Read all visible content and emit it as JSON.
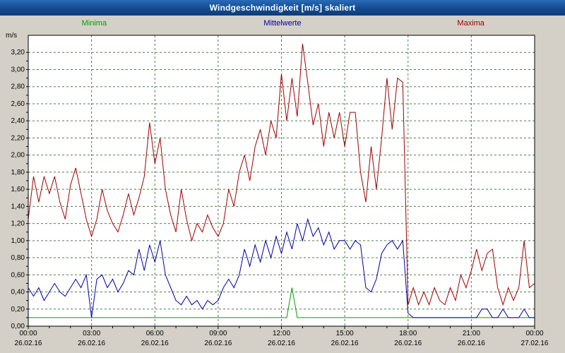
{
  "title": "Windgeschwindigkeit [m/s] skaliert",
  "chart_data": {
    "type": "line",
    "title": "Windgeschwindigkeit [m/s] skaliert",
    "ylabel": "m/s",
    "ylim": [
      0,
      3.4
    ],
    "ymax_tick": 3.2,
    "ytick_step": 0.2,
    "hours": 24,
    "grid_on": true,
    "grid_color": "#4e7d4e",
    "x_ticks": [
      {
        "hour": 0,
        "time": "00:00",
        "date": "26.02.16"
      },
      {
        "hour": 3,
        "time": "03:00",
        "date": "26.02.16"
      },
      {
        "hour": 6,
        "time": "06:00",
        "date": "26.02.16"
      },
      {
        "hour": 9,
        "time": "09:00",
        "date": "26.02.16"
      },
      {
        "hour": 12,
        "time": "12:00",
        "date": "26.02.16"
      },
      {
        "hour": 15,
        "time": "15:00",
        "date": "26.02.16"
      },
      {
        "hour": 18,
        "time": "18:00",
        "date": "26.02.16"
      },
      {
        "hour": 21,
        "time": "21:00",
        "date": "26.02.16"
      },
      {
        "hour": 24,
        "time": "00:00",
        "date": "27.02.16"
      }
    ],
    "series": [
      {
        "name": "Minima",
        "color": "#00a000",
        "values": [
          0.1,
          0.1,
          0.1,
          0.1,
          0.1,
          0.1,
          0.1,
          0.1,
          0.1,
          0.1,
          0.1,
          0.1,
          0.1,
          0.1,
          0.1,
          0.1,
          0.1,
          0.1,
          0.1,
          0.1,
          0.1,
          0.1,
          0.1,
          0.1,
          0.1,
          0.1,
          0.1,
          0.1,
          0.1,
          0.1,
          0.1,
          0.1,
          0.1,
          0.1,
          0.1,
          0.1,
          0.1,
          0.1,
          0.1,
          0.1,
          0.1,
          0.1,
          0.1,
          0.1,
          0.1,
          0.1,
          0.1,
          0.1,
          0.1,
          0.1,
          0.45,
          0.1,
          0.1,
          0.1,
          0.1,
          0.1,
          0.1,
          0.1,
          0.1,
          0.1,
          0.1,
          0.1,
          0.1,
          0.1,
          0.1,
          0.1,
          0.1,
          0.1,
          0.1,
          0.1,
          0.1,
          0.1,
          0.1,
          0.1,
          0.1,
          0.1,
          0.1,
          0.1,
          0.1,
          0.1,
          0.1,
          0.1,
          0.1,
          0.1,
          0.1,
          0.1,
          0.1,
          0.1,
          0.1,
          0.1,
          0.1,
          0.1,
          0.1,
          0.1,
          0.1,
          0.1,
          0.1
        ]
      },
      {
        "name": "Mittelwerte",
        "color": "#0000a0",
        "values": [
          0.45,
          0.35,
          0.45,
          0.3,
          0.4,
          0.5,
          0.4,
          0.35,
          0.45,
          0.55,
          0.45,
          0.6,
          0.1,
          0.55,
          0.6,
          0.45,
          0.55,
          0.4,
          0.5,
          0.65,
          0.6,
          0.9,
          0.65,
          0.95,
          0.75,
          1.0,
          0.6,
          0.45,
          0.3,
          0.25,
          0.35,
          0.25,
          0.3,
          0.2,
          0.3,
          0.25,
          0.3,
          0.45,
          0.55,
          0.45,
          0.6,
          0.9,
          0.7,
          0.95,
          0.75,
          1.0,
          0.8,
          1.05,
          0.85,
          1.1,
          0.9,
          1.2,
          1.0,
          1.25,
          1.05,
          1.15,
          0.95,
          1.1,
          0.9,
          1.0,
          1.0,
          0.9,
          1.0,
          0.95,
          0.45,
          0.4,
          0.55,
          0.85,
          0.95,
          1.0,
          0.9,
          1.0,
          0.15,
          0.1,
          0.1,
          0.1,
          0.1,
          0.1,
          0.1,
          0.1,
          0.1,
          0.1,
          0.1,
          0.1,
          0.1,
          0.1,
          0.2,
          0.2,
          0.1,
          0.1,
          0.2,
          0.1,
          0.1,
          0.1,
          0.2,
          0.1,
          0.1
        ]
      },
      {
        "name": "Maxima",
        "color": "#a00000",
        "values": [
          1.25,
          1.75,
          1.45,
          1.75,
          1.55,
          1.75,
          1.45,
          1.25,
          1.65,
          1.85,
          1.55,
          1.25,
          1.05,
          1.25,
          1.6,
          1.35,
          1.2,
          1.1,
          1.3,
          1.55,
          1.3,
          1.5,
          1.75,
          2.38,
          1.9,
          2.2,
          1.6,
          1.3,
          1.1,
          1.6,
          1.25,
          1.0,
          1.2,
          1.1,
          1.3,
          1.15,
          1.05,
          1.2,
          1.6,
          1.4,
          1.8,
          2.0,
          1.7,
          2.1,
          2.3,
          2.0,
          2.4,
          2.2,
          2.95,
          2.4,
          2.9,
          2.45,
          3.3,
          2.85,
          2.35,
          2.6,
          2.1,
          2.5,
          2.2,
          2.5,
          2.1,
          2.5,
          2.5,
          1.8,
          1.45,
          2.1,
          1.6,
          2.2,
          2.9,
          2.3,
          2.9,
          2.85,
          0.25,
          0.45,
          0.25,
          0.4,
          0.25,
          0.45,
          0.3,
          0.25,
          0.45,
          0.3,
          0.6,
          0.45,
          0.65,
          0.9,
          0.65,
          0.85,
          0.9,
          0.45,
          0.25,
          0.45,
          0.3,
          0.45,
          1.0,
          0.45,
          0.5
        ]
      }
    ]
  }
}
